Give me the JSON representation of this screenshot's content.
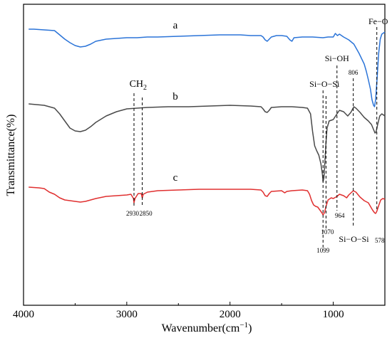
{
  "chart_data": {
    "type": "line",
    "xlabel_main": "Wavenumber(cm",
    "xlabel_sup": "−1",
    "xlabel_end": ")",
    "ylabel": "Transmittance(%)",
    "xlim": [
      4000,
      500
    ],
    "x_reversed": true,
    "xticks": [
      {
        "value": 4000,
        "label": "4000"
      },
      {
        "value": 3000,
        "label": "3000"
      },
      {
        "value": 2000,
        "label": "2000"
      },
      {
        "value": 1000,
        "label": "1000"
      }
    ],
    "series": [
      {
        "name": "a",
        "color": "#2b74d8",
        "points": [
          [
            3950,
            41
          ],
          [
            3900,
            41
          ],
          [
            3800,
            42
          ],
          [
            3700,
            43
          ],
          [
            3600,
            55
          ],
          [
            3550,
            60
          ],
          [
            3500,
            64
          ],
          [
            3450,
            66
          ],
          [
            3400,
            65
          ],
          [
            3350,
            62
          ],
          [
            3300,
            58
          ],
          [
            3200,
            55
          ],
          [
            3100,
            54
          ],
          [
            3000,
            53
          ],
          [
            2900,
            53
          ],
          [
            2800,
            52
          ],
          [
            2700,
            52
          ],
          [
            2500,
            51
          ],
          [
            2300,
            50
          ],
          [
            2100,
            49
          ],
          [
            1900,
            49
          ],
          [
            1800,
            50
          ],
          [
            1700,
            50
          ],
          [
            1680,
            52
          ],
          [
            1660,
            56
          ],
          [
            1640,
            58
          ],
          [
            1620,
            55
          ],
          [
            1600,
            52
          ],
          [
            1550,
            50
          ],
          [
            1500,
            50
          ],
          [
            1450,
            51
          ],
          [
            1420,
            56
          ],
          [
            1400,
            58
          ],
          [
            1380,
            53
          ],
          [
            1300,
            52
          ],
          [
            1200,
            52
          ],
          [
            1100,
            53
          ],
          [
            1050,
            52
          ],
          [
            1000,
            52
          ],
          [
            980,
            47
          ],
          [
            960,
            50
          ],
          [
            940,
            48
          ],
          [
            900,
            52
          ],
          [
            850,
            56
          ],
          [
            800,
            62
          ],
          [
            750,
            75
          ],
          [
            700,
            90
          ],
          [
            680,
            100
          ],
          [
            660,
            112
          ],
          [
            640,
            125
          ],
          [
            625,
            140
          ],
          [
            610,
            148
          ],
          [
            600,
            150
          ],
          [
            590,
            140
          ],
          [
            575,
            110
          ],
          [
            560,
            75
          ],
          [
            545,
            55
          ],
          [
            530,
            48
          ],
          [
            500,
            45
          ]
        ]
      },
      {
        "name": "b",
        "color": "#4a4a4a",
        "points": [
          [
            3950,
            146
          ],
          [
            3800,
            148
          ],
          [
            3700,
            152
          ],
          [
            3650,
            160
          ],
          [
            3600,
            170
          ],
          [
            3550,
            180
          ],
          [
            3500,
            184
          ],
          [
            3450,
            185
          ],
          [
            3400,
            183
          ],
          [
            3350,
            178
          ],
          [
            3300,
            172
          ],
          [
            3200,
            163
          ],
          [
            3100,
            157
          ],
          [
            3000,
            153
          ],
          [
            2900,
            152
          ],
          [
            2800,
            151
          ],
          [
            2600,
            150
          ],
          [
            2400,
            150
          ],
          [
            2200,
            149
          ],
          [
            2000,
            148
          ],
          [
            1800,
            149
          ],
          [
            1700,
            150
          ],
          [
            1680,
            153
          ],
          [
            1660,
            157
          ],
          [
            1640,
            158
          ],
          [
            1620,
            155
          ],
          [
            1600,
            151
          ],
          [
            1500,
            150
          ],
          [
            1400,
            150
          ],
          [
            1300,
            151
          ],
          [
            1250,
            152
          ],
          [
            1220,
            160
          ],
          [
            1200,
            185
          ],
          [
            1180,
            205
          ],
          [
            1160,
            212
          ],
          [
            1140,
            218
          ],
          [
            1120,
            230
          ],
          [
            1105,
            245
          ],
          [
            1099,
            255
          ],
          [
            1090,
            250
          ],
          [
            1080,
            225
          ],
          [
            1070,
            200
          ],
          [
            1060,
            180
          ],
          [
            1040,
            170
          ],
          [
            1000,
            168
          ],
          [
            964,
            160
          ],
          [
            940,
            155
          ],
          [
            900,
            157
          ],
          [
            860,
            163
          ],
          [
            830,
            158
          ],
          [
            800,
            150
          ],
          [
            780,
            152
          ],
          [
            740,
            158
          ],
          [
            700,
            165
          ],
          [
            660,
            170
          ],
          [
            630,
            175
          ],
          [
            610,
            182
          ],
          [
            595,
            187
          ],
          [
            585,
            185
          ],
          [
            570,
            175
          ],
          [
            550,
            163
          ],
          [
            530,
            160
          ],
          [
            510,
            162
          ],
          [
            500,
            163
          ]
        ]
      },
      {
        "name": "c",
        "color": "#e03030",
        "points": [
          [
            3950,
            263
          ],
          [
            3850,
            264
          ],
          [
            3800,
            265
          ],
          [
            3750,
            270
          ],
          [
            3700,
            273
          ],
          [
            3650,
            278
          ],
          [
            3600,
            281
          ],
          [
            3550,
            282
          ],
          [
            3500,
            283
          ],
          [
            3450,
            284
          ],
          [
            3400,
            283
          ],
          [
            3350,
            281
          ],
          [
            3300,
            279
          ],
          [
            3200,
            276
          ],
          [
            3100,
            275
          ],
          [
            3000,
            274
          ],
          [
            2960,
            273
          ],
          [
            2935,
            279
          ],
          [
            2930,
            285
          ],
          [
            2920,
            279
          ],
          [
            2890,
            272
          ],
          [
            2860,
            272
          ],
          [
            2850,
            278
          ],
          [
            2840,
            273
          ],
          [
            2800,
            270
          ],
          [
            2700,
            268
          ],
          [
            2500,
            267
          ],
          [
            2300,
            266
          ],
          [
            2100,
            266
          ],
          [
            1900,
            266
          ],
          [
            1800,
            266
          ],
          [
            1700,
            267
          ],
          [
            1680,
            270
          ],
          [
            1660,
            275
          ],
          [
            1640,
            276
          ],
          [
            1620,
            272
          ],
          [
            1600,
            269
          ],
          [
            1500,
            268
          ],
          [
            1470,
            271
          ],
          [
            1450,
            269
          ],
          [
            1400,
            268
          ],
          [
            1300,
            267
          ],
          [
            1250,
            268
          ],
          [
            1230,
            273
          ],
          [
            1210,
            282
          ],
          [
            1190,
            288
          ],
          [
            1170,
            290
          ],
          [
            1150,
            291
          ],
          [
            1130,
            295
          ],
          [
            1110,
            299
          ],
          [
            1099,
            302
          ],
          [
            1085,
            299
          ],
          [
            1070,
            290
          ],
          [
            1050,
            281
          ],
          [
            1020,
            278
          ],
          [
            1000,
            279
          ],
          [
            964,
            276
          ],
          [
            940,
            273
          ],
          [
            900,
            275
          ],
          [
            870,
            278
          ],
          [
            850,
            274
          ],
          [
            820,
            270
          ],
          [
            806,
            268
          ],
          [
            780,
            270
          ],
          [
            740,
            277
          ],
          [
            700,
            282
          ],
          [
            660,
            285
          ],
          [
            640,
            290
          ],
          [
            620,
            295
          ],
          [
            600,
            299
          ],
          [
            590,
            300
          ],
          [
            578,
            297
          ],
          [
            560,
            289
          ],
          [
            540,
            281
          ],
          [
            520,
            279
          ],
          [
            500,
            280
          ]
        ]
      }
    ],
    "series_labels": [
      {
        "text": "a",
        "x": 2530,
        "y": 40
      },
      {
        "text": "b",
        "x": 2530,
        "y": 140
      },
      {
        "text": "c",
        "x": 2530,
        "y": 254
      }
    ],
    "annotations": {
      "ch2": {
        "label_main": "CH",
        "label_sub": "2",
        "lines": [
          2930,
          2850
        ]
      },
      "peaks": [
        {
          "x": 2930,
          "label": "2930"
        },
        {
          "x": 2850,
          "label": "2850"
        },
        {
          "x": 1099,
          "label": "1099"
        },
        {
          "x": 1070,
          "label": "1070"
        },
        {
          "x": 964,
          "label": "964"
        },
        {
          "x": 806,
          "label": "806"
        },
        {
          "x": 578,
          "label": "578"
        }
      ],
      "groups": [
        {
          "x": 578,
          "label": "Fe−O"
        },
        {
          "x": 964,
          "label": "Si−OH"
        },
        {
          "x": 1099,
          "label": "Si−O−Si"
        },
        {
          "x": 806,
          "label": "Si−O−Si"
        }
      ]
    }
  }
}
